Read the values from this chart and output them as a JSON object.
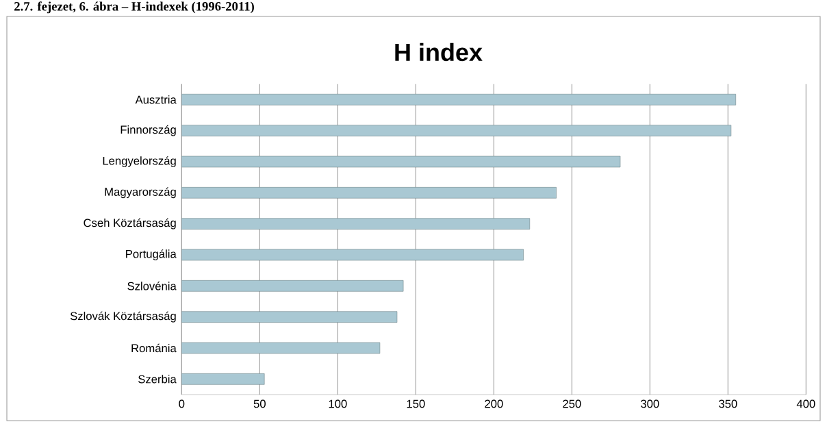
{
  "chart_data": {
    "type": "bar",
    "orientation": "horizontal",
    "title": "H index",
    "annotations": [
      "2.7. fejezet, 6. ábra – H-indexek (1996-2011)"
    ],
    "categories": [
      "Ausztria",
      "Finnország",
      "Lengyelország",
      "Magyarország",
      "Cseh Köztársaság",
      "Portugália",
      "Szlovénia",
      "Szlovák Köztársaság",
      "Románia",
      "Szerbia"
    ],
    "values": [
      355,
      352,
      281,
      240,
      223,
      219,
      142,
      138,
      127,
      53
    ],
    "color": "#a9c8d3",
    "xlim": [
      0,
      400
    ],
    "xticks": [
      0,
      50,
      100,
      150,
      200,
      250,
      300,
      350,
      400
    ],
    "grid": "x"
  }
}
